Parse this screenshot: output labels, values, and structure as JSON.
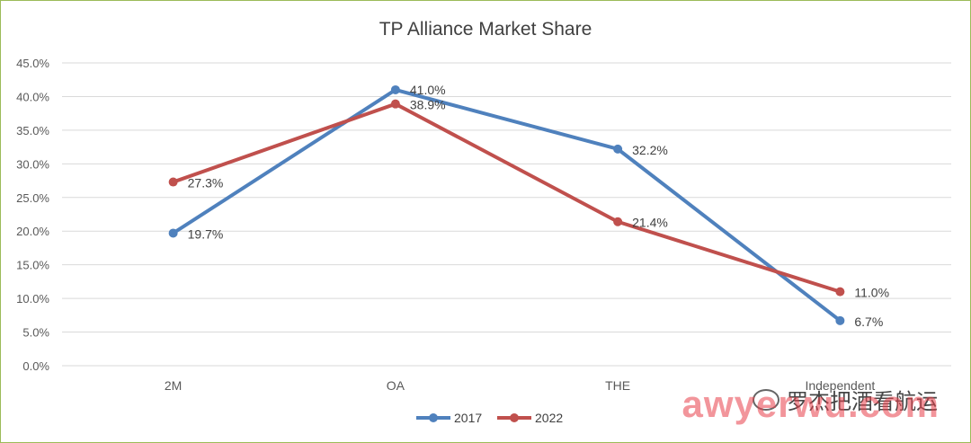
{
  "chart_data": {
    "type": "line",
    "title": "TP Alliance Market Share",
    "categories": [
      "2M",
      "OA",
      "THE",
      "Independent"
    ],
    "ylim": [
      0,
      45
    ],
    "yticks": [
      "0.0%",
      "5.0%",
      "10.0%",
      "15.0%",
      "20.0%",
      "25.0%",
      "30.0%",
      "35.0%",
      "40.0%",
      "45.0%"
    ],
    "ytick_values": [
      0,
      5,
      10,
      15,
      20,
      25,
      30,
      35,
      40,
      45
    ],
    "grid": true,
    "legend": "bottom",
    "series": [
      {
        "name": "2017",
        "color": "#4f81bd",
        "values": [
          19.7,
          41.0,
          32.2,
          6.7
        ],
        "labels": [
          "19.7%",
          "41.0%",
          "32.2%",
          "6.7%"
        ]
      },
      {
        "name": "2022",
        "color": "#c0504d",
        "values": [
          27.3,
          38.9,
          21.4,
          11.0
        ],
        "labels": [
          "27.3%",
          "38.9%",
          "21.4%",
          "11.0%"
        ]
      }
    ]
  },
  "watermark": {
    "brand": "awyerwu.com",
    "wechat_name": "罗杰把酒看航运"
  }
}
